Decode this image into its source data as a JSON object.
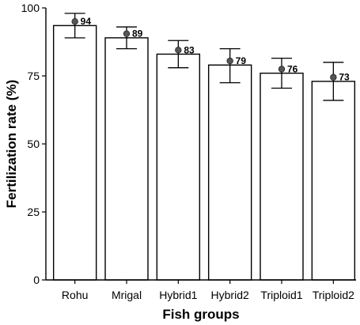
{
  "chart_data": {
    "type": "bar",
    "categories": [
      "Rohu",
      "Mrigal",
      "Hybrid1",
      "Hybrid2",
      "Triploid1",
      "Triploid2"
    ],
    "values": [
      93.5,
      89,
      83,
      79,
      76,
      73
    ],
    "error_low": [
      89,
      85,
      78,
      72.5,
      70.5,
      66
    ],
    "error_high": [
      98,
      93,
      88,
      85,
      81.5,
      80
    ],
    "point_values": [
      95,
      90.5,
      84.5,
      80.5,
      77.5,
      74.5
    ],
    "data_labels": [
      "94",
      "89",
      "83",
      "79",
      "76",
      "73"
    ],
    "title": "",
    "xlabel": "Fish groups",
    "ylabel": "Fertilization rate (%)",
    "ylim": [
      0,
      100
    ],
    "yticks": [
      "0",
      "25",
      "50",
      "75",
      "100"
    ],
    "grid": false,
    "legend": "none"
  }
}
